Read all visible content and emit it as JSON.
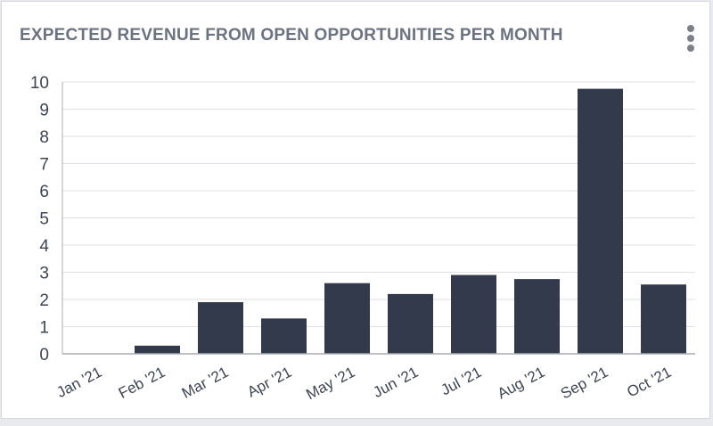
{
  "card": {
    "title": "EXPECTED REVENUE FROM OPEN OPPORTUNITIES PER MONTH"
  },
  "menu": {
    "icon": "more-vertical-icon"
  },
  "colors": {
    "bar": "#333a4b",
    "grid": "#dfe1e6",
    "axis": "#a9acb4",
    "tick_text": "#3d4452",
    "title": "#6b7280"
  },
  "chart_data": {
    "type": "bar",
    "title": "EXPECTED REVENUE FROM OPEN OPPORTUNITIES PER MONTH",
    "xlabel": "",
    "ylabel": "",
    "categories": [
      "Jan '21",
      "Feb '21",
      "Mar '21",
      "Apr '21",
      "May '21",
      "Jun '21",
      "Jul '21",
      "Aug '21",
      "Sep '21",
      "Oct '21"
    ],
    "values": [
      0,
      0.3,
      1.9,
      1.3,
      2.6,
      2.2,
      2.9,
      2.75,
      9.75,
      2.55
    ],
    "ylim": [
      0,
      10
    ],
    "yticks": [
      0,
      1,
      2,
      3,
      4,
      5,
      6,
      7,
      8,
      9,
      10
    ],
    "grid": true,
    "legend": "none"
  }
}
